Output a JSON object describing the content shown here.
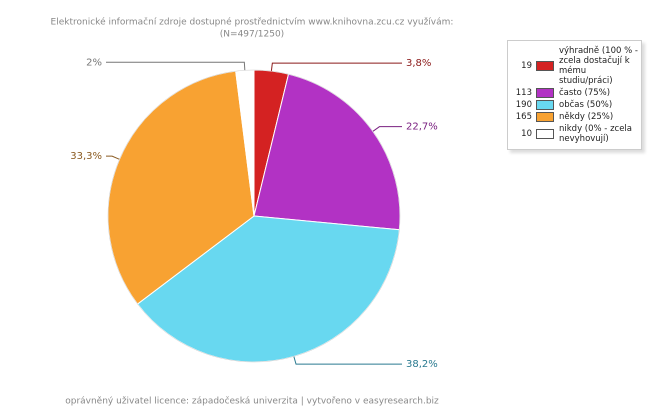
{
  "chart_data": {
    "type": "pie",
    "title": "Elektronické informační zdroje dostupné prostřednictvím www.knihovna.zcu.cz využívám:",
    "subtitle": "(N=497/1250)",
    "footer": "oprávněný uživatel licence: západočeská univerzita | vytvořeno v easyresearch.biz",
    "categories": [
      "výhradně (100 % - zcela dostačují k mému studiu/práci)",
      "často (75%)",
      "občas (50%)",
      "někdy (25%)",
      "nikdy (0% - zcela nevyhovují)"
    ],
    "values": [
      3.8,
      22.7,
      38.2,
      33.3,
      2
    ],
    "value_labels": [
      "3,8%",
      "22,7%",
      "38,2%",
      "33,3%",
      "2%"
    ],
    "counts": [
      19,
      113,
      190,
      165,
      10
    ],
    "colors": [
      "#d42222",
      "#b232c4",
      "#68d8f0",
      "#f8a232",
      "#ffffff"
    ],
    "label_colors": [
      "#8b1a1a",
      "#7a2080",
      "#2a7a90",
      "#8a5a20",
      "#777777"
    ]
  }
}
